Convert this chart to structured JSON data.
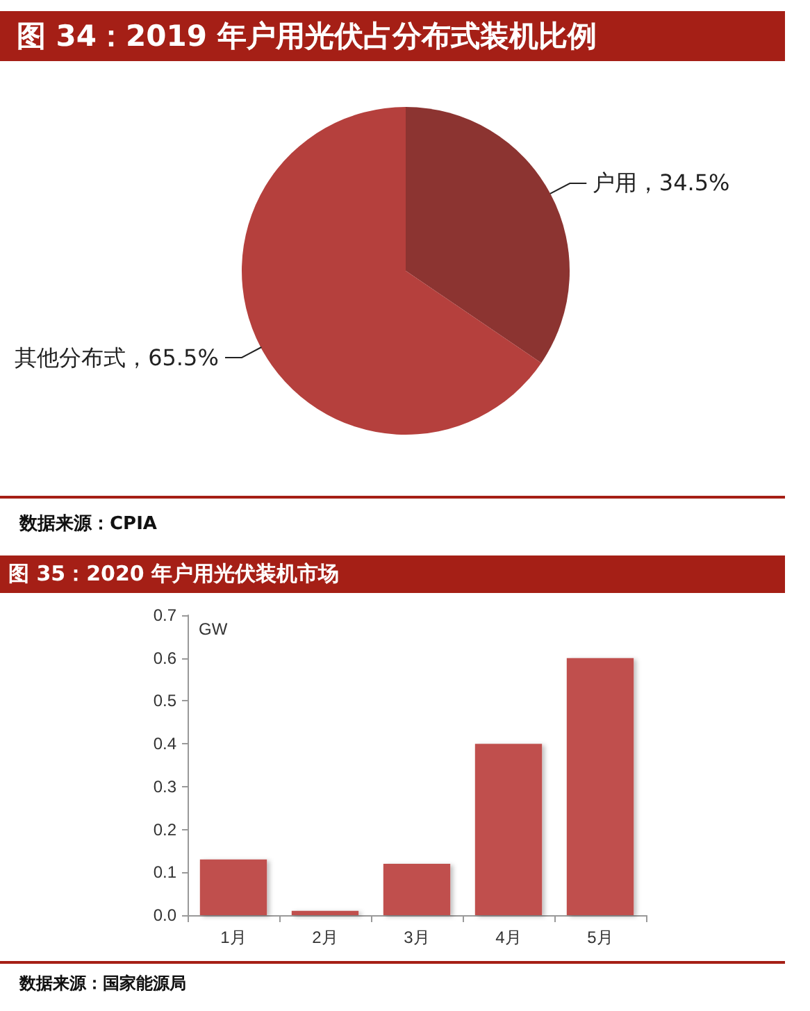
{
  "chart_data": [
    {
      "type": "pie",
      "title": "图 34：2019 年户用光伏占分布式装机比例",
      "categories": [
        "户用",
        "其他分布式"
      ],
      "values": [
        34.5,
        65.5
      ],
      "value_labels": [
        "34.5%",
        "65.5%"
      ],
      "colors": [
        "#8c3431",
        "#b5403d"
      ],
      "annotations": [
        "数据来源：CPIA"
      ]
    },
    {
      "type": "bar",
      "title": "图 35：2020 年户用光伏装机市场",
      "ylabel": "GW",
      "categories": [
        "1月",
        "2月",
        "3月",
        "4月",
        "5月"
      ],
      "values": [
        0.13,
        0.01,
        0.12,
        0.4,
        0.6
      ],
      "color": "#c0504d",
      "ylim": [
        0,
        0.7
      ],
      "yticks": [
        {
          "value": 0,
          "label": "0.0"
        },
        0.1,
        0.2,
        0.3,
        0.4,
        0.5,
        0.6,
        0.7
      ],
      "annotations": [
        "数据来源：国家能源局"
      ]
    }
  ]
}
